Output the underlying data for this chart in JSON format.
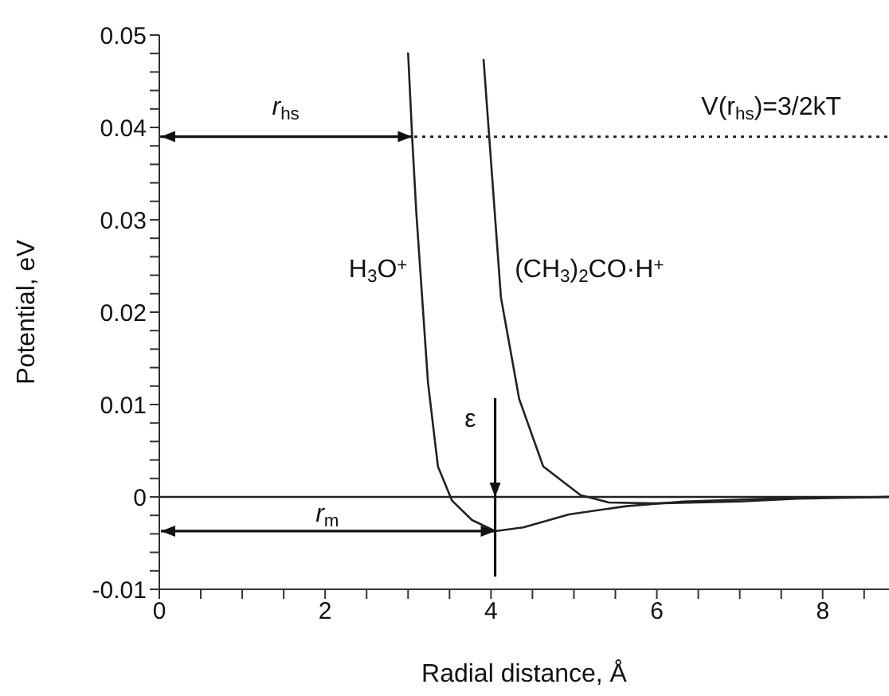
{
  "chart_data": {
    "type": "line",
    "xlabel": "Radial distance, Å",
    "ylabel": "Potential, eV",
    "xlim": [
      0,
      8.8
    ],
    "ylim": [
      -0.01,
      0.05
    ],
    "xticks": [
      0,
      {
        "value": 0.5,
        "label": null
      },
      2,
      {
        "value": 1,
        "label": null
      },
      {
        "value": 1.5,
        "label": null
      },
      {
        "value": 2.5,
        "label": null
      },
      {
        "value": 3,
        "label": null
      },
      {
        "value": 3.5,
        "label": null
      },
      4,
      {
        "value": 4.5,
        "label": null
      },
      {
        "value": 5,
        "label": null
      },
      {
        "value": 5.5,
        "label": null
      },
      6,
      {
        "value": 6.5,
        "label": null
      },
      {
        "value": 7,
        "label": null
      },
      {
        "value": 7.5,
        "label": null
      },
      8,
      {
        "value": 8.5,
        "label": null
      }
    ],
    "yticks": [
      -0.01,
      {
        "value": -0.008,
        "label": null
      },
      {
        "value": -0.006,
        "label": null
      },
      {
        "value": -0.004,
        "label": null
      },
      {
        "value": -0.002,
        "label": null
      },
      0,
      {
        "value": 0.002,
        "label": null
      },
      {
        "value": 0.004,
        "label": null
      },
      {
        "value": 0.006,
        "label": null
      },
      {
        "value": 0.008,
        "label": null
      },
      0.01,
      {
        "value": 0.012,
        "label": null
      },
      {
        "value": 0.014,
        "label": null
      },
      {
        "value": 0.016,
        "label": null
      },
      {
        "value": 0.018,
        "label": null
      },
      0.02,
      {
        "value": 0.022,
        "label": null
      },
      {
        "value": 0.024,
        "label": null
      },
      {
        "value": 0.026,
        "label": null
      },
      {
        "value": 0.028,
        "label": null
      },
      0.03,
      {
        "value": 0.032,
        "label": null
      },
      {
        "value": 0.034,
        "label": null
      },
      {
        "value": 0.036,
        "label": null
      },
      {
        "value": 0.038,
        "label": null
      },
      0.04,
      {
        "value": 0.042,
        "label": null
      },
      {
        "value": 0.044,
        "label": null
      },
      {
        "value": 0.046,
        "label": null
      },
      {
        "value": 0.048,
        "label": null
      },
      0.05
    ],
    "marker": "none",
    "line_style": "solid",
    "series": [
      {
        "name": "H$_{3}$O$^{+}$",
        "color": "#222222",
        "x": [
          3.0,
          3.05,
          3.1,
          3.24,
          3.36,
          3.53,
          3.77,
          4.05,
          4.39,
          4.94,
          5.63,
          6.32,
          7.69,
          8.8
        ],
        "values": [
          0.0481,
          0.0388,
          0.0307,
          0.0124,
          0.0033,
          -0.0004,
          -0.0025,
          -0.0037,
          -0.0033,
          -0.0019,
          -0.001,
          -0.0005,
          -0.0001,
          0
        ]
      },
      {
        "name": "(CH$_{3}$)$_{2}$CO·H$^{+}$",
        "color": "#222222",
        "x": [
          3.91,
          3.98,
          4.12,
          4.34,
          4.63,
          5.08,
          5.42,
          5.97,
          7.0,
          7.69,
          8.8
        ],
        "values": [
          0.0474,
          0.0388,
          0.0216,
          0.0106,
          0.0033,
          0.0002,
          -0.0006,
          -0.0007,
          -0.0005,
          -0.0002,
          0
        ]
      }
    ],
    "ref_lines": [
      {
        "axis": "y",
        "value": 0,
        "label": null,
        "color": "#222222",
        "line_style": "solid"
      },
      {
        "axis": "y",
        "value": 0.039,
        "label": null,
        "color": "#222222",
        "line_style": "dotted"
      }
    ],
    "annotations": [
      "r$_{hs}$",
      "r$_{m}$",
      {
        "text": "ε",
        "x": 4.05,
        "y": 0
      },
      "V(r$_{hs}$)=3/2kT"
    ]
  }
}
